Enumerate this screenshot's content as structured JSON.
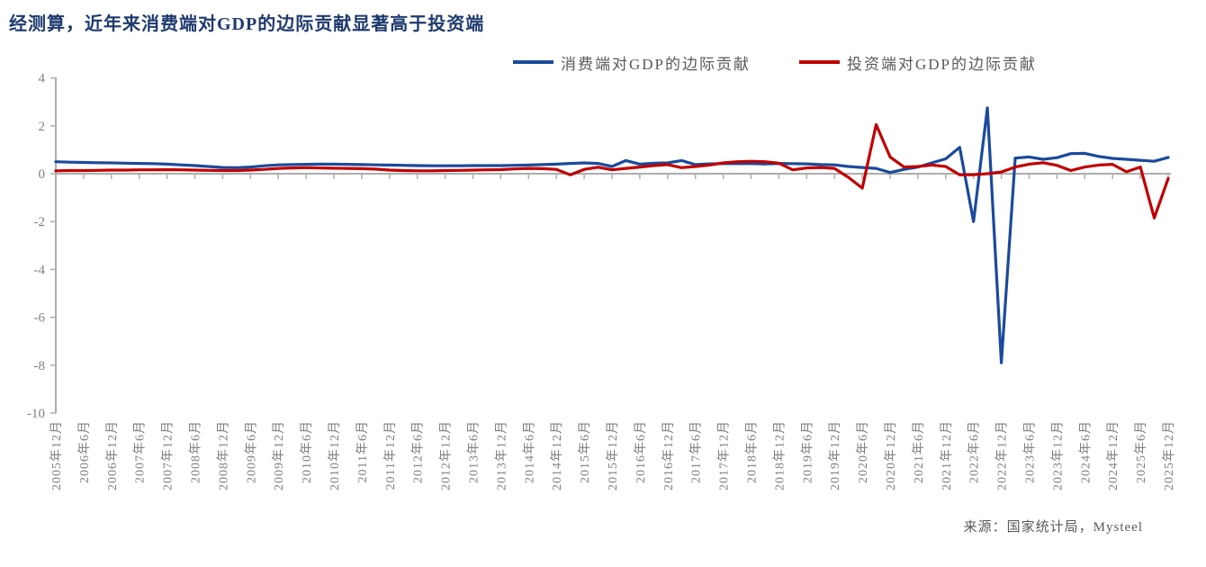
{
  "title": {
    "text": "经测算，近年来消费端对GDP的边际贡献显著高于投资端"
  },
  "source": {
    "text": "来源：国家统计局，Mysteel"
  },
  "chart_data": {
    "type": "line",
    "x_start": "2005-12",
    "x_step_months": 3,
    "x_tick_labels": [
      "2005年12月",
      "2006年6月",
      "2006年12月",
      "2007年6月",
      "2007年12月",
      "2008年6月",
      "2008年12月",
      "2009年6月",
      "2009年12月",
      "2010年6月",
      "2010年12月",
      "2011年6月",
      "2011年12月",
      "2012年6月",
      "2012年12月",
      "2013年6月",
      "2013年12月",
      "2014年6月",
      "2014年12月",
      "2015年6月",
      "2015年12月",
      "2016年6月",
      "2016年12月",
      "2017年6月",
      "2017年12月",
      "2018年6月",
      "2018年12月",
      "2019年6月",
      "2019年12月",
      "2020年6月",
      "2020年12月",
      "2021年6月",
      "2021年12月",
      "2022年6月",
      "2022年12月",
      "2023年6月",
      "2023年12月",
      "2024年6月",
      "2024年12月",
      "2025年6月",
      "2025年12月"
    ],
    "y_ticks": [
      4,
      2,
      0,
      -2,
      -4,
      -6,
      -8,
      -10
    ],
    "ylim": [
      -10,
      4
    ],
    "grid": "zero-line-only",
    "legend_position": "top",
    "style": {
      "axis_color": "#adadad",
      "tick_label_color": "#7f7f7f"
    },
    "series": [
      {
        "name": "消费端对GDP的边际贡献",
        "color": "#1a4a9c",
        "values": [
          0.5,
          0.48,
          0.47,
          0.46,
          0.45,
          0.44,
          0.43,
          0.42,
          0.4,
          0.37,
          0.34,
          0.3,
          0.26,
          0.25,
          0.28,
          0.33,
          0.37,
          0.38,
          0.39,
          0.4,
          0.4,
          0.39,
          0.38,
          0.37,
          0.36,
          0.35,
          0.34,
          0.33,
          0.33,
          0.33,
          0.34,
          0.34,
          0.34,
          0.35,
          0.36,
          0.38,
          0.4,
          0.43,
          0.45,
          0.43,
          0.3,
          0.55,
          0.4,
          0.44,
          0.45,
          0.55,
          0.38,
          0.41,
          0.42,
          0.43,
          0.42,
          0.41,
          0.43,
          0.42,
          0.41,
          0.38,
          0.37,
          0.3,
          0.26,
          0.22,
          0.05,
          0.18,
          0.28,
          0.45,
          0.62,
          1.1,
          -2.0,
          2.75,
          -7.9,
          0.65,
          0.7,
          0.6,
          0.67,
          0.84,
          0.85,
          0.72,
          0.64,
          0.6,
          0.56,
          0.52,
          0.68
        ]
      },
      {
        "name": "投资端对GDP的边际贡献",
        "color": "#c00000",
        "values": [
          0.12,
          0.13,
          0.13,
          0.14,
          0.15,
          0.15,
          0.16,
          0.16,
          0.17,
          0.16,
          0.15,
          0.14,
          0.13,
          0.13,
          0.15,
          0.18,
          0.22,
          0.24,
          0.25,
          0.24,
          0.23,
          0.22,
          0.21,
          0.19,
          0.15,
          0.13,
          0.12,
          0.12,
          0.13,
          0.14,
          0.15,
          0.16,
          0.17,
          0.2,
          0.22,
          0.21,
          0.18,
          -0.05,
          0.18,
          0.27,
          0.16,
          0.22,
          0.28,
          0.34,
          0.38,
          0.25,
          0.3,
          0.36,
          0.45,
          0.5,
          0.52,
          0.5,
          0.44,
          0.16,
          0.24,
          0.26,
          0.22,
          -0.15,
          -0.6,
          2.05,
          0.7,
          0.28,
          0.3,
          0.36,
          0.3,
          -0.05,
          -0.04,
          0.0,
          0.07,
          0.28,
          0.4,
          0.46,
          0.35,
          0.13,
          0.28,
          0.36,
          0.39,
          0.08,
          0.28,
          -1.85,
          -0.2
        ]
      }
    ]
  }
}
